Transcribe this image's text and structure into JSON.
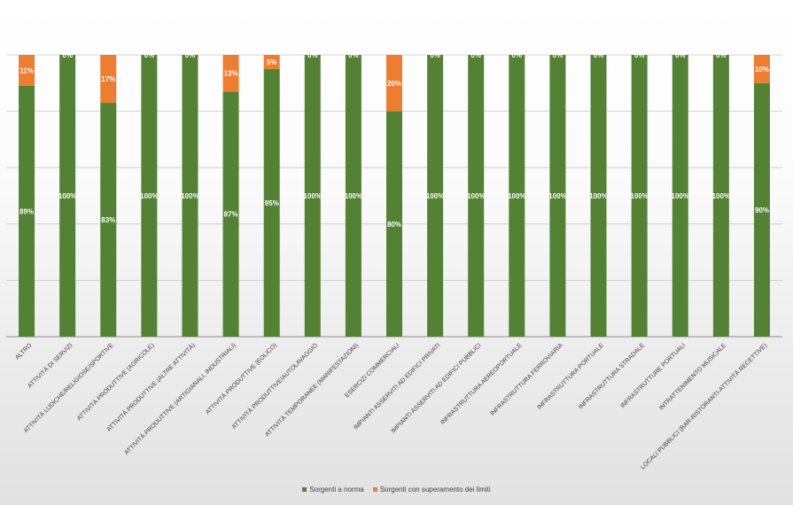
{
  "chart_data": {
    "type": "bar",
    "stacked": true,
    "percent": true,
    "categories": [
      "ALTRO",
      "ATTIVITÀ  DI SERVIZI",
      "ATTIVITÀ LUDICHE/RELIGIOSE/SPORTIVE",
      "ATTIVITÀ PRODUTTIVE (AGRICOLE)",
      "ATTIVITÀ PRODUTTIVE (ALTRE ATTIVITÀ)",
      "ATTIVITÀ PRODUTTIVE (ARTIGIANALI, INDUSTRIALI)",
      "ATTIVITÀ PRODUTTIVE (EOLICO)",
      "ATTIVITÀ PRODUTTIVE/AUTOLAVAGGIO",
      "ATTIVITÀ TEMPORANEE (MANIFESTAZIONI)",
      "ESERCIZI COMMERCIALI",
      "IMPIANTI ASSERVITI AD EDIFICI PRIVATI",
      "IMPIANTI ASSERVITI AD EDIFICI PUBBLICI",
      "INFRASTRUTTURA AEREOPORTUALE",
      "INFRASTRUTTURA FERROVIARIA",
      "INFRASTRUTTURA PORTUALE",
      "INFRASTRUTTURA STRADALE",
      "INFRASTRUTTURE PORTUALI",
      "INTRATTENIMENTO MUSICALE",
      "LOCALI PUBBLICI (BAR-RISTORANTI-ATTIVITÀ RECETTIVE)"
    ],
    "series": [
      {
        "name": "Sorgenti  a norma",
        "color": "#548235",
        "values": [
          89,
          100,
          83,
          100,
          100,
          87,
          95,
          100,
          100,
          80,
          100,
          100,
          100,
          100,
          100,
          100,
          100,
          100,
          90
        ],
        "labels": [
          "89%",
          "100%",
          "83%",
          "100%",
          "100%",
          "87%",
          "95%",
          "100%",
          "100%",
          "80%",
          "100%",
          "100%",
          "100%",
          "100%",
          "100%",
          "100%",
          "100%",
          "100%",
          "90%"
        ]
      },
      {
        "name": "Sorgenti con superamento dei limiti",
        "color": "#ed7d31",
        "values": [
          11,
          0,
          17,
          0,
          0,
          13,
          5,
          0,
          0,
          20,
          0,
          0,
          0,
          0,
          0,
          0,
          0,
          0,
          10
        ],
        "labels": [
          "11%",
          "0%",
          "17%",
          "0%",
          "0%",
          "13%",
          "5%",
          "0%",
          "0%",
          "20%",
          "0%",
          "0%",
          "0%",
          "0%",
          "0%",
          "0%",
          "0%",
          "0%",
          "10%"
        ]
      }
    ],
    "ylim": [
      0,
      100
    ],
    "grid": true,
    "legend_position": "bottom",
    "title": "",
    "xlabel": "",
    "ylabel": ""
  }
}
